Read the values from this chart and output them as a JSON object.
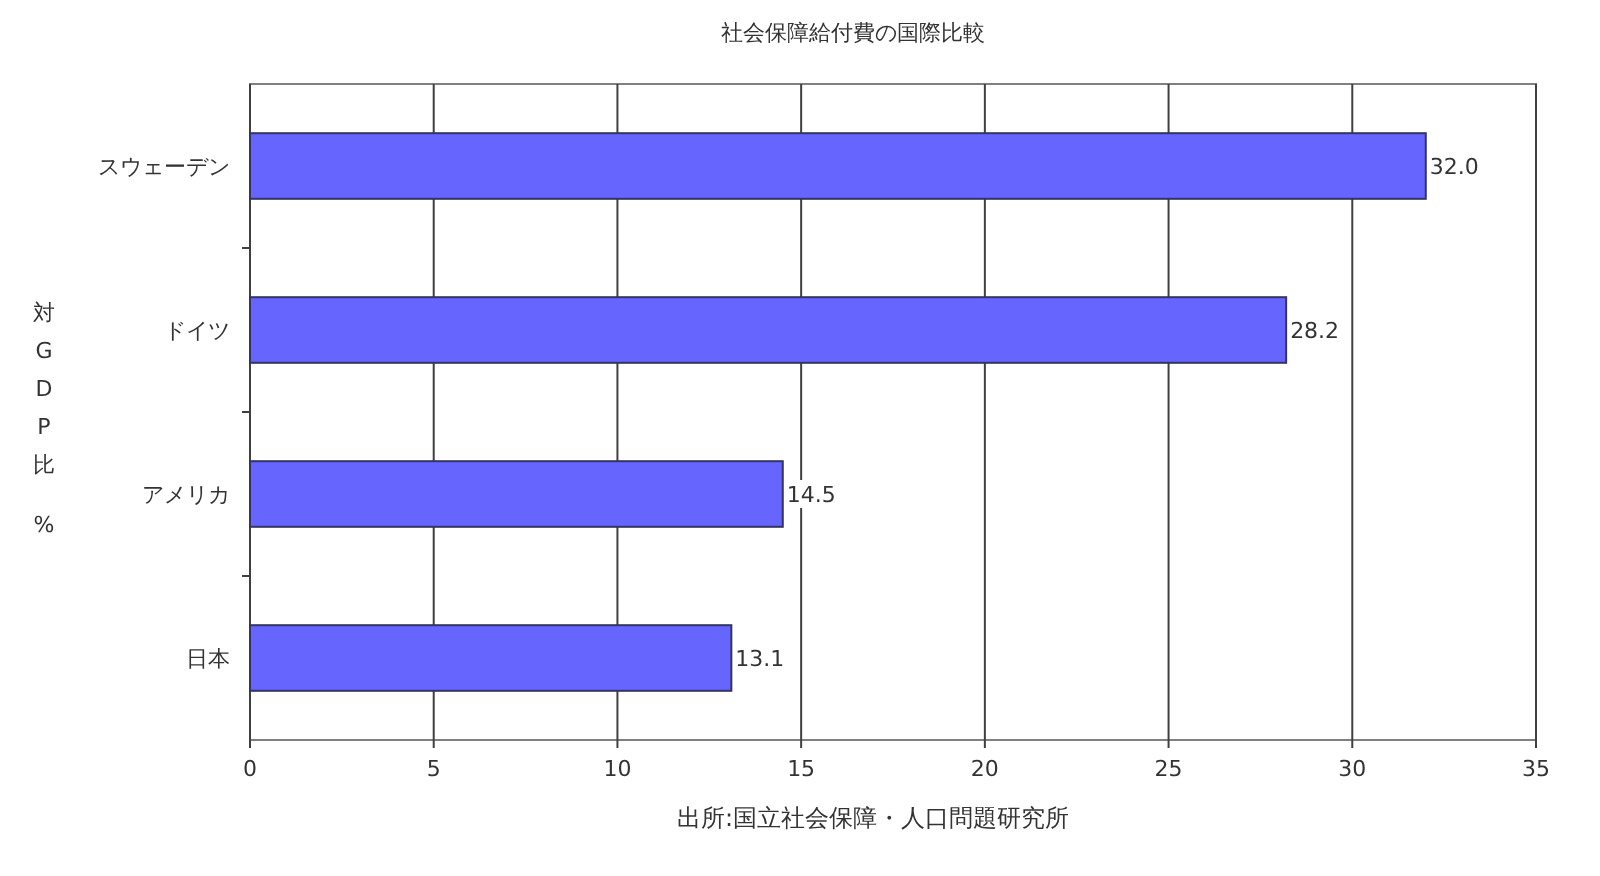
{
  "chart_data": {
    "type": "bar",
    "orientation": "horizontal",
    "title": "社会保障給付費の国際比較",
    "ylabel": "対GDP比 %",
    "annotations": [
      "出所:国立社会保障・人口問題研究所"
    ],
    "categories": [
      "スウェーデン",
      "ドイツ",
      "アメリカ",
      "日本"
    ],
    "values": [
      32.0,
      28.2,
      14.5,
      13.1
    ],
    "color": "#6666ff",
    "xlim": [
      0,
      35
    ],
    "xticks": [
      0,
      5,
      10,
      15,
      20,
      25,
      30,
      35
    ],
    "grid": "x",
    "value_labels": [
      "32.0",
      "28.2",
      "14.5",
      "13.1"
    ]
  }
}
